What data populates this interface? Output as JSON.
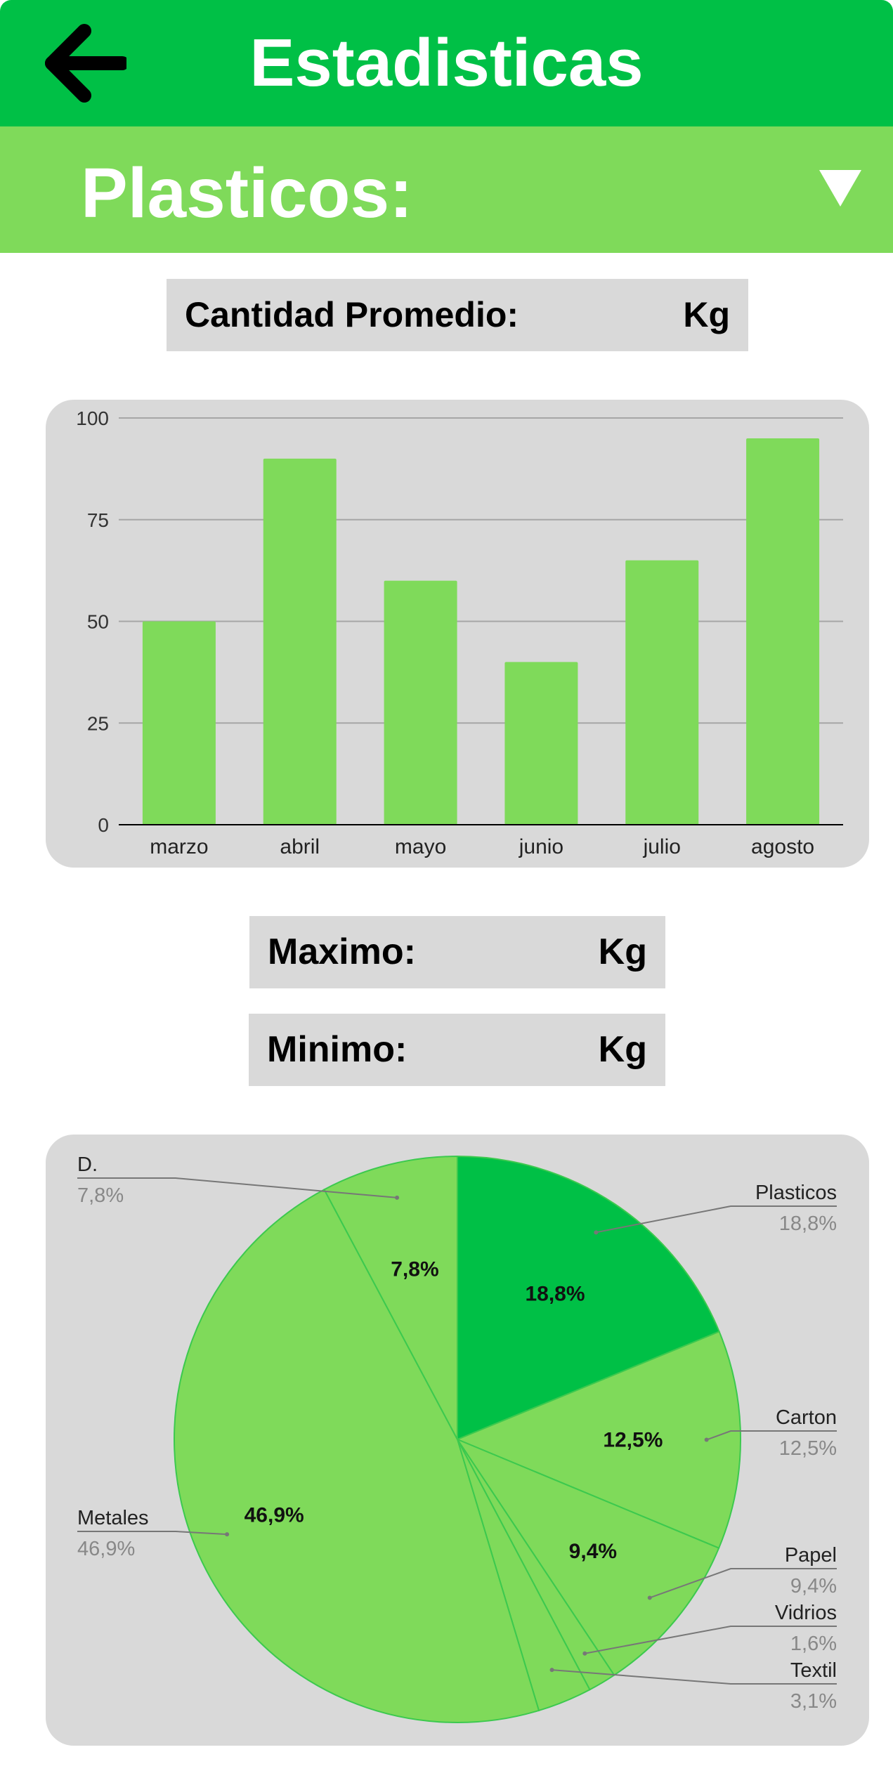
{
  "header": {
    "title": "Estadisticas",
    "back_icon": "arrow-left-icon"
  },
  "category": {
    "selected": "Plasticos:",
    "dropdown_icon": "triangle-down-icon"
  },
  "stats": {
    "average_label": "Cantidad Promedio:",
    "max_label": "Maximo:",
    "min_label": "Minimo:",
    "unit": "Kg"
  },
  "colors": {
    "primary": "#00c046",
    "secondary": "#7fda5a",
    "panel": "#d9d9d9"
  },
  "chart_data": [
    {
      "type": "bar",
      "categories": [
        "marzo",
        "abril",
        "mayo",
        "junio",
        "julio",
        "agosto"
      ],
      "values": [
        50,
        90,
        60,
        40,
        65,
        95
      ],
      "ylim": [
        0,
        100
      ],
      "yticks": [
        0,
        25,
        50,
        75,
        100
      ],
      "grid": true,
      "color": "#7fda5a"
    },
    {
      "type": "pie",
      "slices": [
        {
          "label": "Plasticos",
          "value": 18.8,
          "text": "18,8%",
          "color": "#00c046"
        },
        {
          "label": "Carton",
          "value": 12.5,
          "text": "12,5%",
          "color": "#7fda5a"
        },
        {
          "label": "Papel",
          "value": 9.4,
          "text": "9,4%",
          "color": "#7fda5a"
        },
        {
          "label": "Vidrios",
          "value": 1.6,
          "text": "1,6%",
          "color": "#7fda5a"
        },
        {
          "label": "Textil",
          "value": 3.1,
          "text": "3,1%",
          "color": "#7fda5a"
        },
        {
          "label": "Metales",
          "value": 46.9,
          "text": "46,9%",
          "color": "#7fda5a"
        },
        {
          "label": "D.",
          "value": 7.8,
          "text": "7,8%",
          "color": "#7fda5a"
        }
      ]
    }
  ]
}
